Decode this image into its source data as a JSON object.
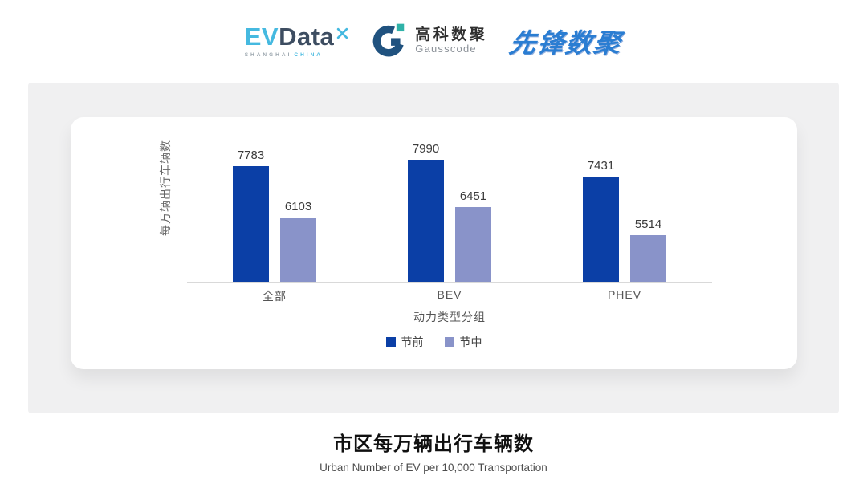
{
  "header": {
    "evdata": {
      "ev": "EV",
      "data": "Data",
      "sub_left": "SHANGHAI",
      "sub_right": "CHINA",
      "ev_color": "#45b9e0",
      "data_color": "#3d4d61"
    },
    "gausscode": {
      "cn": "高科数聚",
      "en": "Gausscode",
      "icon_ring_color": "#20527f",
      "icon_accent_color": "#2fb2a8"
    },
    "xianfeng": {
      "text": "先锋数聚",
      "color": "#2a7dd2"
    }
  },
  "chart_data": {
    "type": "bar",
    "title": "市区每万辆出行车辆数",
    "subtitle": "Urban Number of EV per 10,000 Transportation",
    "xlabel": "动力类型分组",
    "ylabel": "每万辆出行车辆数",
    "categories": [
      "全部",
      "BEV",
      "PHEV"
    ],
    "series": [
      {
        "name": "节前",
        "color": "#0b3fa6",
        "values": [
          7783,
          7990,
          7431
        ]
      },
      {
        "name": "节中",
        "color": "#8993c9",
        "values": [
          6103,
          6451,
          5514
        ]
      }
    ],
    "ylim": [
      4000,
      8200
    ],
    "grid": false,
    "value_labels": true,
    "legend_position": "bottom"
  }
}
